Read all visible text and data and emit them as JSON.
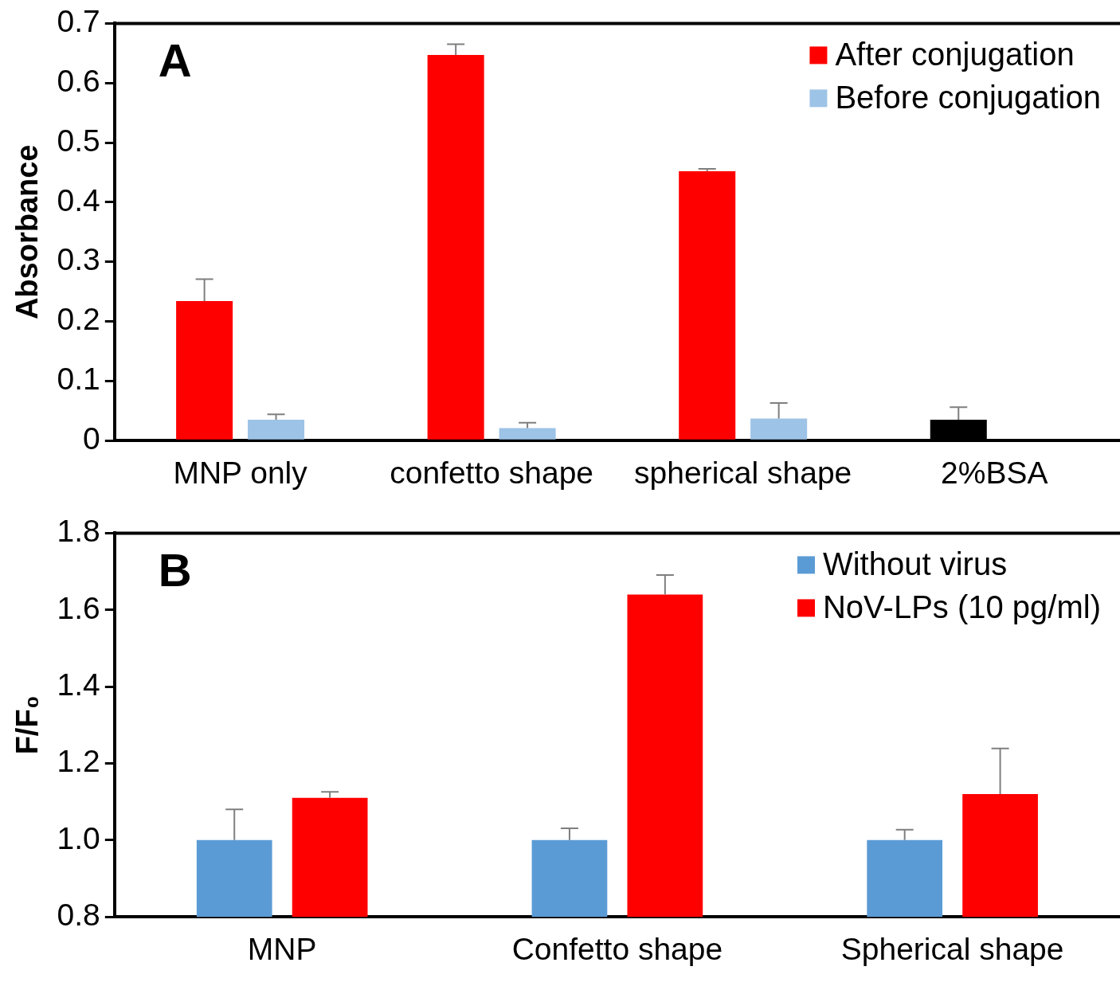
{
  "chart_data": [
    {
      "type": "bar",
      "ylabel": "Absorbance",
      "annotations": [
        "A"
      ],
      "categories": [
        "MNP only",
        "confetto shape",
        "spherical shape",
        "2%BSA"
      ],
      "series": [
        {
          "name": "After conjugation",
          "color": "#ff0000",
          "colors": [
            "#ff0000",
            "#ff0000",
            "#ff0000",
            "#000000"
          ],
          "values": [
            0.234,
            0.647,
            0.452,
            0.035
          ],
          "errors": [
            [
              0.234,
              0.271
            ],
            [
              0.647,
              0.665
            ],
            [
              0.452,
              0.456
            ],
            [
              0.035,
              0.056
            ]
          ]
        },
        {
          "name": "Before conjugation",
          "color": "#9dc3e6",
          "values": [
            0.035,
            0.021,
            0.037,
            null
          ],
          "errors": [
            [
              0.035,
              0.044
            ],
            [
              0.021,
              0.03
            ],
            [
              0.037,
              0.063
            ],
            null
          ]
        }
      ],
      "ylim": [
        0,
        0.7
      ],
      "yticks": [
        0,
        0.1,
        0.2,
        0.3,
        0.4,
        0.5,
        0.6,
        0.7
      ],
      "grid": false,
      "legend": "top right"
    },
    {
      "type": "bar",
      "ylabel": "F/F₀",
      "annotations": [
        "B"
      ],
      "categories": [
        "MNP",
        "Confetto shape",
        "Spherical shape"
      ],
      "series": [
        {
          "name": "Without virus",
          "color": "#5b9bd5",
          "values": [
            1.0,
            1.0,
            1.0
          ],
          "errors": [
            [
              1.0,
              1.08
            ],
            [
              1.0,
              1.031
            ],
            [
              1.0,
              1.027
            ]
          ]
        },
        {
          "name": "NoV-LPs (10 pg/ml)",
          "color": "#ff0000",
          "values": [
            1.11,
            1.64,
            1.12
          ],
          "errors": [
            [
              1.11,
              1.126
            ],
            [
              1.64,
              1.691
            ],
            [
              1.12,
              1.239
            ]
          ]
        }
      ],
      "ylim": [
        0.8,
        1.8
      ],
      "yticks": [
        {
          "value": 0.8,
          "label": "0.8"
        },
        {
          "value": 1,
          "label": "1.0"
        },
        {
          "value": 1.2,
          "label": "1.2"
        },
        {
          "value": 1.4,
          "label": "1.4"
        },
        {
          "value": 1.6,
          "label": "1.6"
        },
        {
          "value": 1.8,
          "label": "1.8"
        }
      ],
      "grid": false,
      "legend": "top right"
    }
  ]
}
